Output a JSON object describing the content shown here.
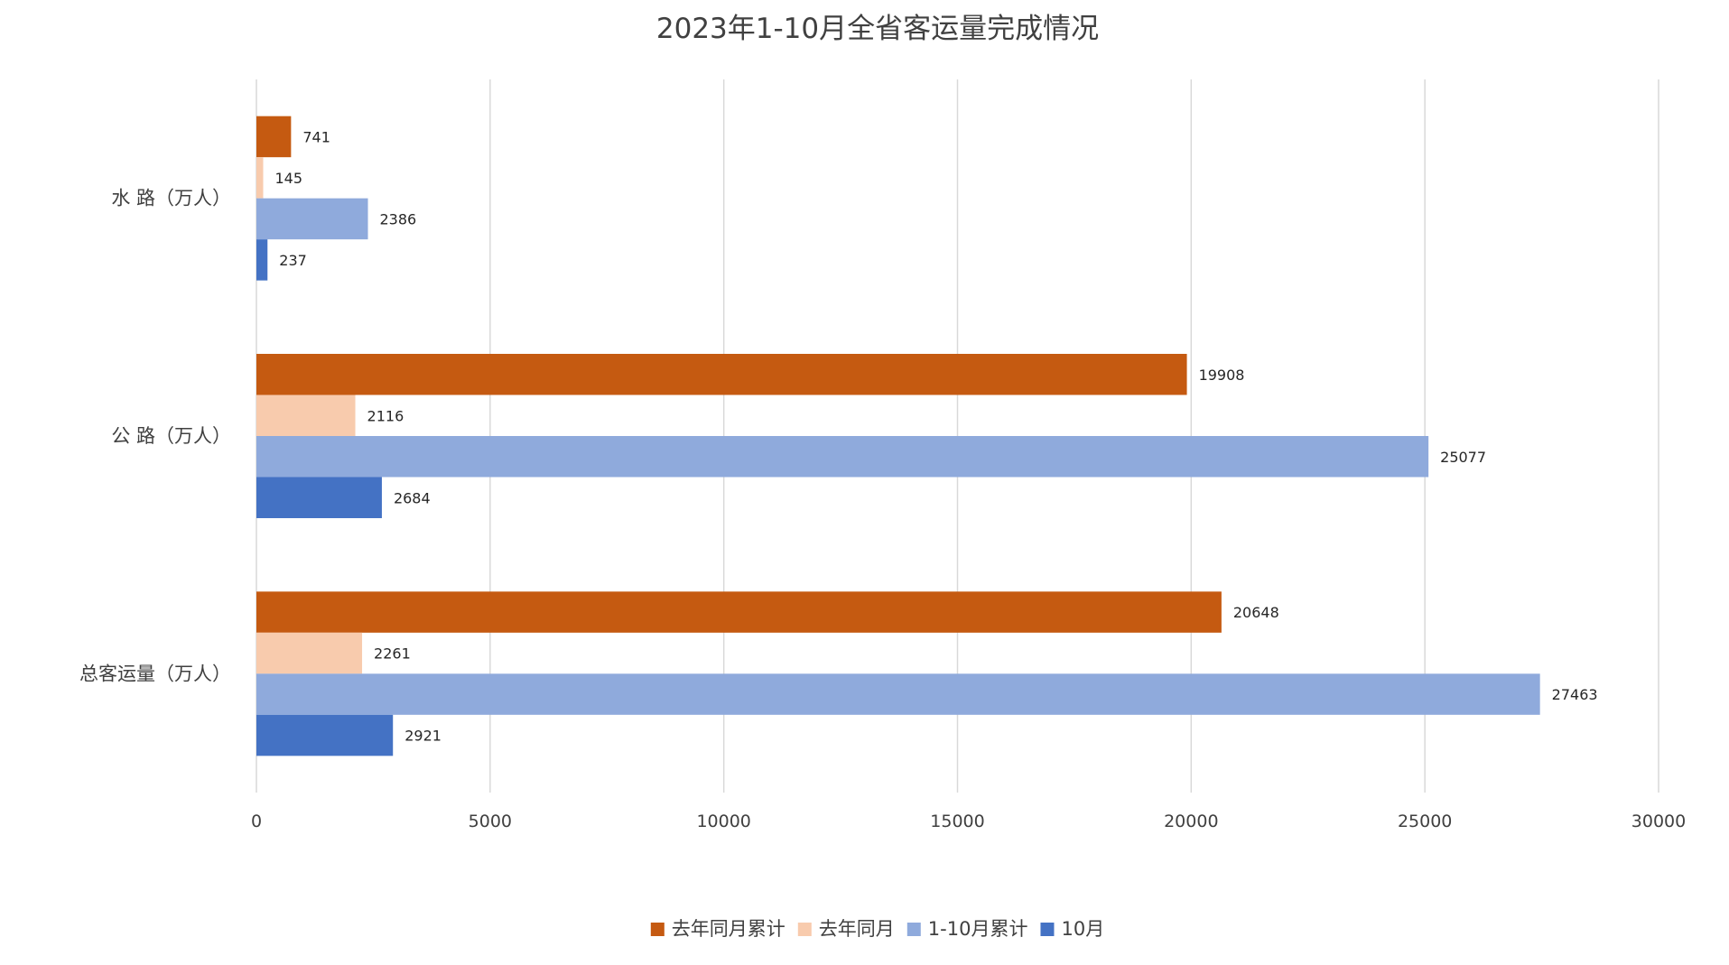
{
  "chart_data": {
    "type": "bar",
    "orientation": "horizontal",
    "title": "2023年1-10月全省客运量完成情况",
    "categories": [
      "水 路（万人）",
      "公 路（万人）",
      "总客运量（万人）"
    ],
    "series": [
      {
        "name": "去年同月累计",
        "color": "#c55a11",
        "values": [
          741,
          19908,
          20648
        ]
      },
      {
        "name": "去年同月",
        "color": "#f8cbad",
        "values": [
          145,
          2116,
          2261
        ]
      },
      {
        "name": "1-10月累计",
        "color": "#8faadc",
        "values": [
          2386,
          25077,
          27463
        ]
      },
      {
        "name": "10月",
        "color": "#4472c4",
        "values": [
          237,
          2684,
          2921
        ]
      }
    ],
    "xlim": [
      0,
      30000
    ],
    "xticks": [
      0,
      5000,
      10000,
      15000,
      20000,
      25000,
      30000
    ],
    "grid": true,
    "data_labels": true,
    "legend_position": "bottom"
  }
}
